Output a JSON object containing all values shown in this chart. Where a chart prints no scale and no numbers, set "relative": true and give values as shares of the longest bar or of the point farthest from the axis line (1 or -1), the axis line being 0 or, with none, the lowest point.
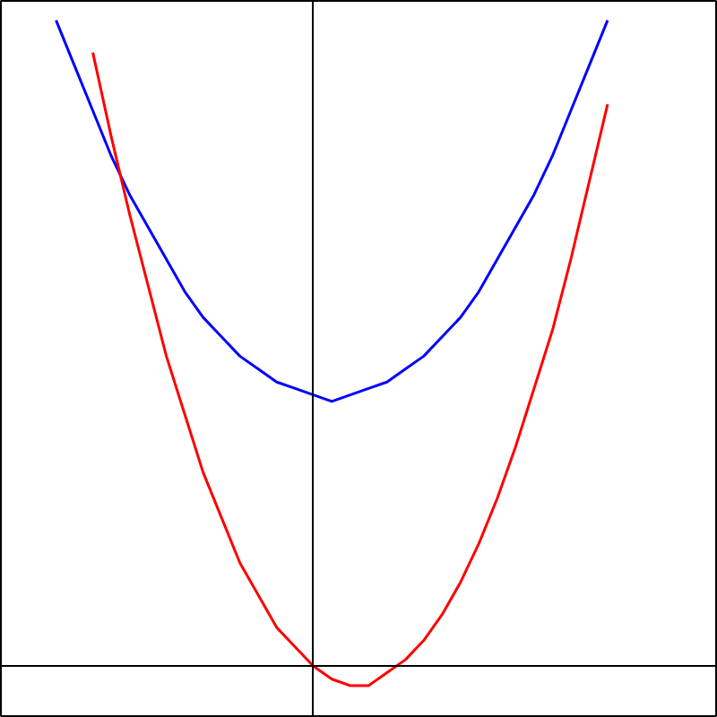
{
  "chart_data": {
    "type": "line",
    "relative": true,
    "categories": [
      null,
      null,
      null,
      null,
      null,
      null,
      null,
      null,
      null,
      null,
      null,
      null,
      null,
      null,
      null,
      null,
      null,
      null,
      null,
      null,
      null,
      null,
      null,
      null,
      null,
      null,
      null,
      null,
      null,
      null,
      null
    ],
    "series": [
      {
        "color": "#0000ff",
        "values": [
          1.0,
          0.93,
          0.86,
          0.79,
          0.73,
          0.68,
          0.63,
          0.58,
          0.54,
          0.51,
          0.48,
          0.46,
          0.44,
          0.43,
          0.42,
          0.41,
          0.42,
          0.43,
          0.44,
          0.46,
          0.48,
          0.51,
          0.54,
          0.58,
          0.63,
          0.68,
          0.73,
          0.79,
          0.86,
          0.93,
          1.0
        ]
      },
      {
        "color": "#ff0000",
        "values": [
          null,
          null,
          0.95,
          0.82,
          0.7,
          0.59,
          0.48,
          0.39,
          0.3,
          0.23,
          0.16,
          0.11,
          0.06,
          0.03,
          0.0,
          -0.02,
          -0.03,
          -0.03,
          -0.01,
          0.01,
          0.04,
          0.08,
          0.13,
          0.19,
          0.26,
          0.34,
          0.43,
          0.52,
          0.63,
          0.75,
          0.87
        ]
      }
    ]
  }
}
